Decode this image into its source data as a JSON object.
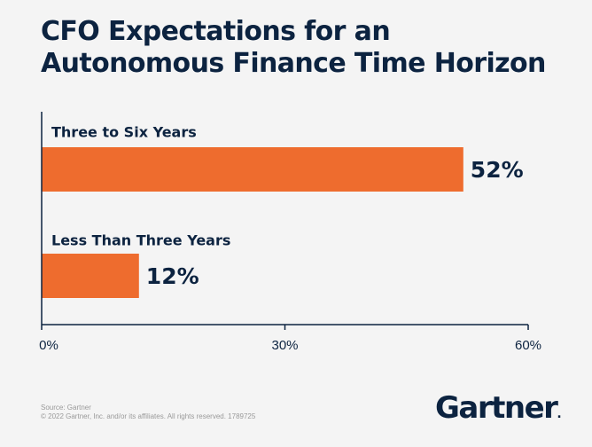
{
  "title": {
    "line1": "CFO Expectations for an",
    "line2": "Autonomous Finance Time Horizon"
  },
  "chart_data": {
    "type": "bar",
    "orientation": "horizontal",
    "categories": [
      "Three to Six Years",
      "Less Than Three Years"
    ],
    "values": [
      52,
      12
    ],
    "value_labels": [
      "52%",
      "12%"
    ],
    "xlim": [
      0,
      60
    ],
    "xticks": [
      0,
      30,
      60
    ],
    "xtick_labels": [
      "0%",
      "30%",
      "60%"
    ],
    "bar_color": "#ee6c2e",
    "grid": false,
    "title": "CFO Expectations for an Autonomous Finance Time Horizon"
  },
  "footer": {
    "source": "Source: Gartner",
    "copyright": "© 2022 Gartner, Inc. and/or its affiliates. All rights reserved. 1789725"
  },
  "logo": {
    "text": "Gartner",
    "dot": "."
  },
  "colors": {
    "navy": "#0c2340",
    "orange": "#ee6c2e",
    "background": "#f4f4f4"
  }
}
